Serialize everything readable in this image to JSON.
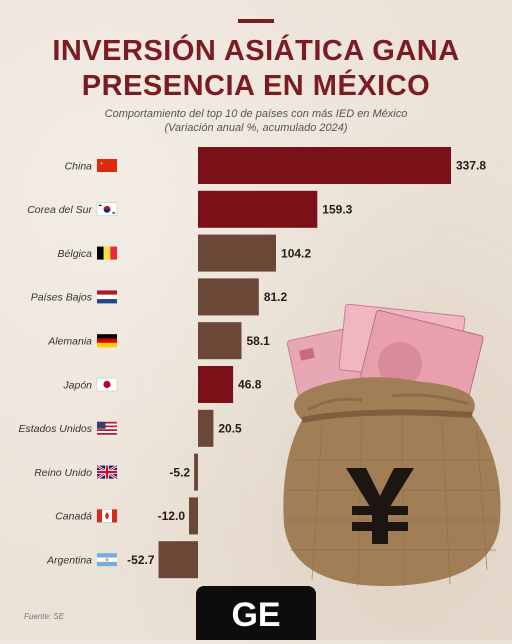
{
  "header": {
    "title_line1": "INVERSIÓN ASIÁTICA GANA",
    "title_line2": "PRESENCIA EN MÉXICO",
    "subtitle_line1": "Comportamiento del top 10 de países con más IED en México",
    "subtitle_line2": "(Variación anual %, acumulado 2024)"
  },
  "chart_data": {
    "type": "bar",
    "orientation": "horizontal",
    "categories": [
      "China",
      "Corea del Sur",
      "Bélgica",
      "Países Bajos",
      "Alemania",
      "Japón",
      "Estados Unidos",
      "Reino Unido",
      "Canadá",
      "Argentina"
    ],
    "values": [
      337.8,
      159.3,
      104.2,
      81.2,
      58.1,
      46.8,
      20.5,
      -5.2,
      -12.0,
      -52.7
    ],
    "value_labels": [
      "337.8",
      "159.3",
      "104.2",
      "81.2",
      "58.1",
      "46.8",
      "20.5",
      "-5.2",
      "-12.0",
      "-52.7"
    ],
    "flags": [
      "china-flag-icon",
      "south-korea-flag-icon",
      "belgium-flag-icon",
      "netherlands-flag-icon",
      "germany-flag-icon",
      "japan-flag-icon",
      "usa-flag-icon",
      "uk-flag-icon",
      "canada-flag-icon",
      "argentina-flag-icon"
    ],
    "xlim": [
      -53,
      338
    ],
    "grid": false,
    "colors": {
      "asian": "#7a1018",
      "other": "#6b4738",
      "value_label": "#2a1a14",
      "category_label": "#333333"
    },
    "asian_countries": [
      "China",
      "Corea del Sur",
      "Japón"
    ]
  },
  "footer": {
    "source": "Fuente: SE",
    "badge": "GE"
  },
  "decor": {
    "bag_icon": "money-bag-yuan-icon"
  }
}
